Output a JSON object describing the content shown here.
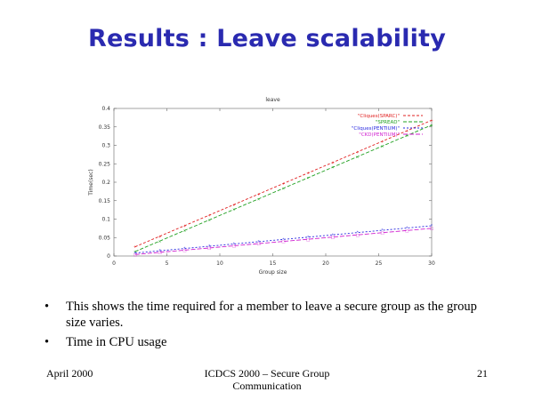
{
  "slide": {
    "title": "Results : Leave scalability",
    "bullets": [
      "This shows the time required for a member to leave a secure group as the group size varies.",
      "Time in CPU usage"
    ],
    "bullet_glyph": "•",
    "footer": {
      "left": "April 2000",
      "center": "ICDCS 2000 – Secure Group Communication",
      "right": "21"
    }
  },
  "chart_data": {
    "type": "line",
    "title": "leave",
    "xlabel": "Group size",
    "ylabel": "Time(sec)",
    "xlim": [
      0,
      30
    ],
    "ylim": [
      0,
      0.4
    ],
    "xticks": [
      0,
      5,
      10,
      15,
      20,
      25,
      30
    ],
    "yticks": [
      0,
      0.05,
      0.1,
      0.15,
      0.2,
      0.25,
      0.3,
      0.35,
      0.4
    ],
    "ytick_labels": [
      "0",
      "0.05",
      "0.1",
      "0.15",
      "0.2",
      "0.25",
      "0.3",
      "0.35",
      "0.4"
    ],
    "legend_position": "top-right",
    "series": [
      {
        "name": "\"Cliques(SPARC)\"",
        "color": "#e02020",
        "dash": "3,2",
        "x": [
          2,
          30
        ],
        "y": [
          0.025,
          0.368
        ]
      },
      {
        "name": "\"SPREAD\"",
        "color": "#20a020",
        "dash": "4,2",
        "x": [
          2,
          30
        ],
        "y": [
          0.012,
          0.355
        ]
      },
      {
        "name": "\"Cliques(PENTIUM)\"",
        "color": "#2a2ae0",
        "dash": "2,2",
        "x": [
          2,
          30
        ],
        "y": [
          0.008,
          0.082
        ]
      },
      {
        "name": "\"CKD(PENTIUM)\"",
        "color": "#d020d0",
        "dash": "5,2",
        "x": [
          2,
          30
        ],
        "y": [
          0.004,
          0.075
        ]
      }
    ]
  }
}
